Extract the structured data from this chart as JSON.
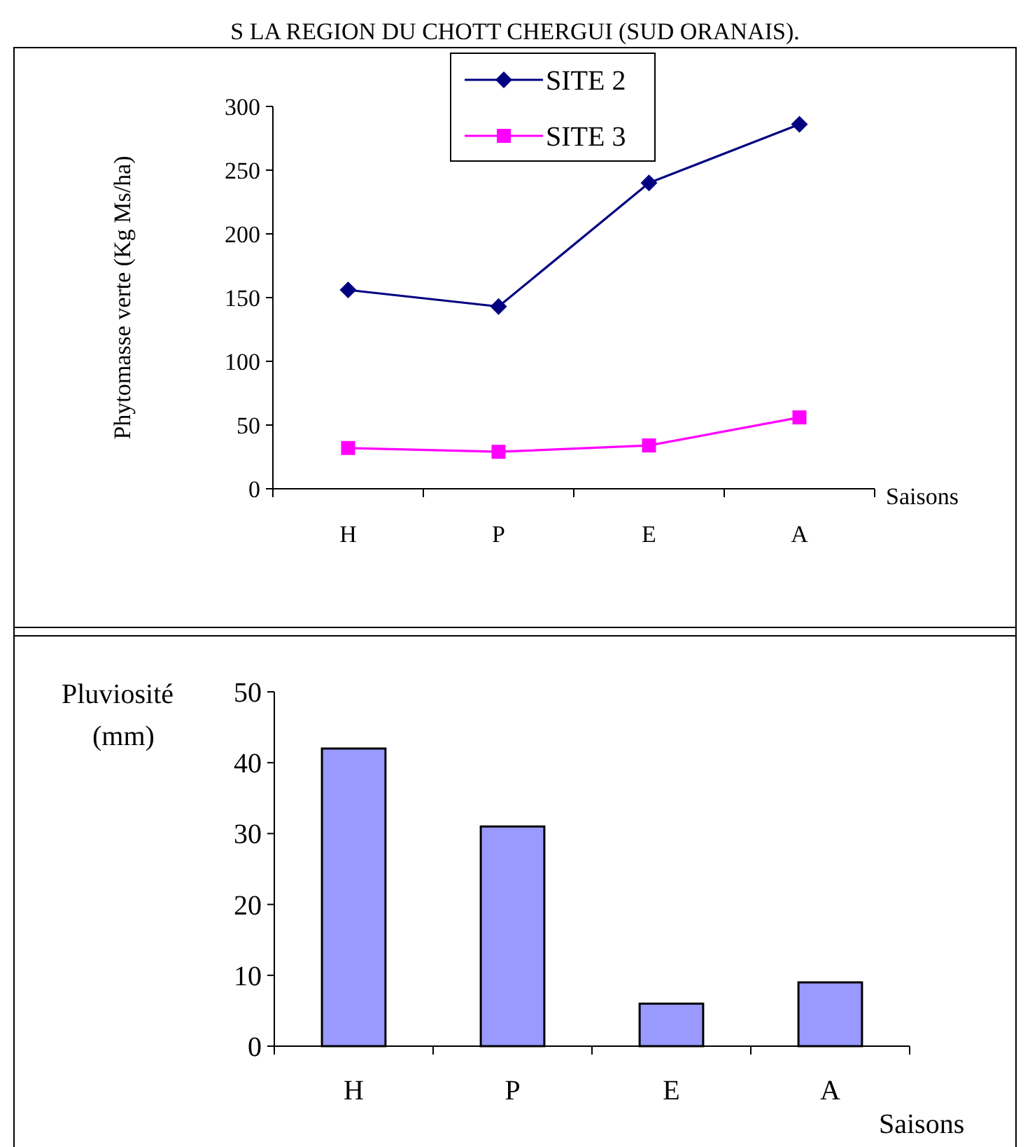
{
  "chart_data": [
    {
      "type": "line",
      "title": "S LA REGION DU CHOTT CHERGUI (SUD ORANAIS).",
      "ylabel": "Phytomasse verte  (Kg Ms/ha)",
      "xlabel": "Saisons",
      "categories": [
        "H",
        "P",
        "E",
        "A"
      ],
      "ylim": [
        0,
        300
      ],
      "yticks": [
        0,
        50,
        100,
        150,
        200,
        250,
        300
      ],
      "grid": false,
      "legend": "top",
      "series": [
        {
          "name": "SITE 2",
          "color": "#000080",
          "marker": "diamond",
          "values": [
            156,
            143,
            240,
            286
          ]
        },
        {
          "name": "SITE 3",
          "color": "#ff00ff",
          "marker": "square",
          "values": [
            32,
            29,
            34,
            56
          ]
        }
      ]
    },
    {
      "type": "bar",
      "ylabel": "Pluviosité (mm)",
      "xlabel": "Saisons",
      "categories": [
        "H",
        "P",
        "E",
        "A"
      ],
      "ylim": [
        0,
        50
      ],
      "yticks": [
        0,
        10,
        20,
        30,
        40,
        50
      ],
      "grid": false,
      "legend": false,
      "series": [
        {
          "color": "#9999ff",
          "values": [
            42,
            31,
            6,
            9
          ]
        }
      ]
    }
  ]
}
